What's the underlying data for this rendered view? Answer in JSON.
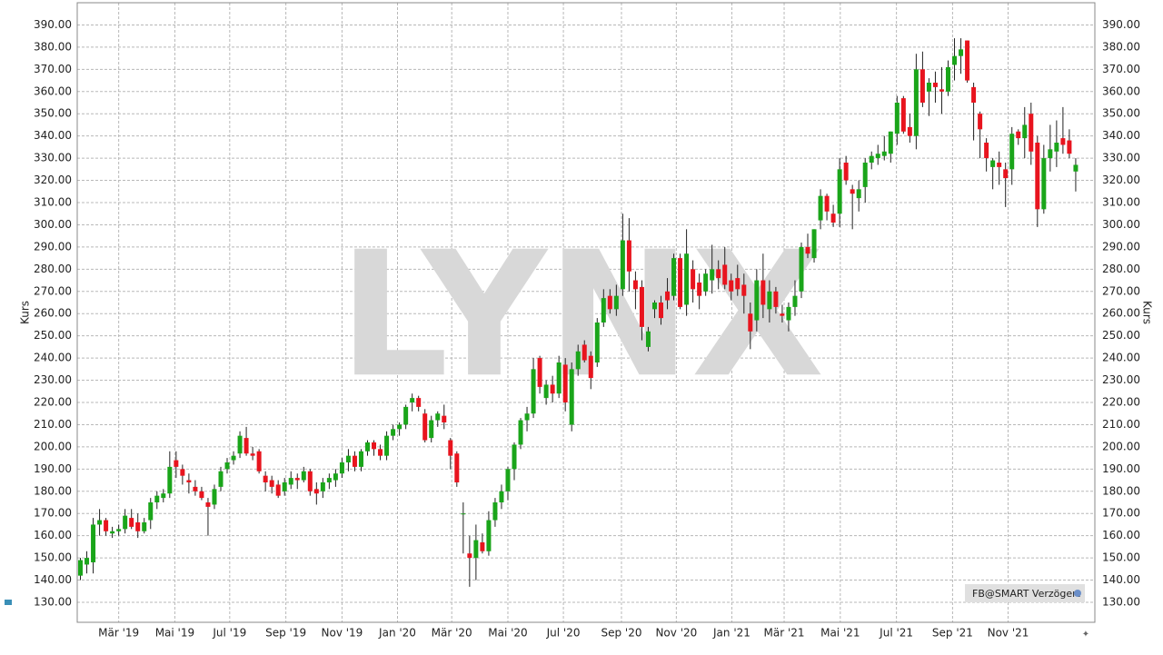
{
  "chart_data": {
    "type": "candlestick",
    "watermark": "LYNX",
    "ylabel": "Kurs",
    "source_label": "FB@SMART Verzögert",
    "up_color": "#1aa51a",
    "down_color": "#e8141e",
    "open": [
      142,
      147,
      148,
      165,
      167,
      161,
      162,
      163,
      168,
      166,
      162,
      167,
      175,
      177,
      179,
      194,
      190,
      185,
      182,
      180,
      175,
      174,
      182,
      190,
      194,
      197,
      204,
      197,
      198,
      187,
      185,
      183,
      180,
      183,
      186,
      185,
      189,
      181,
      180,
      184,
      185,
      188,
      193,
      196,
      191,
      198,
      202,
      199,
      196,
      205,
      208,
      210,
      220,
      222,
      215,
      204,
      212,
      214,
      203,
      197,
      170,
      152,
      150,
      157,
      153,
      167,
      175,
      180,
      190,
      201,
      212,
      215,
      240,
      222,
      228,
      224,
      237,
      210,
      235,
      246,
      241,
      238,
      256,
      268,
      262,
      271,
      293,
      275,
      272,
      245,
      262,
      265,
      270,
      268,
      285,
      264,
      280,
      274,
      270,
      275,
      280,
      282,
      275,
      276,
      273,
      260,
      257,
      275,
      262,
      270,
      260,
      257,
      263,
      270,
      290,
      285,
      302,
      313,
      305,
      305,
      328,
      316,
      312,
      317,
      328,
      330,
      331,
      332,
      341,
      357,
      344,
      340,
      370,
      360,
      364,
      361,
      360,
      372,
      376,
      383,
      362,
      350,
      337,
      326,
      328,
      325,
      325,
      342,
      339,
      350,
      337,
      307,
      330,
      333,
      339,
      338,
      324
    ],
    "high": [
      150,
      153,
      168,
      172,
      168,
      164,
      165,
      172,
      172,
      170,
      168,
      177,
      180,
      181,
      198,
      198,
      192,
      188,
      185,
      182,
      177,
      183,
      191,
      195,
      198,
      207,
      209,
      200,
      199,
      189,
      187,
      185,
      186,
      189,
      188,
      191,
      190,
      184,
      186,
      188,
      190,
      195,
      199,
      198,
      199,
      203,
      203,
      201,
      207,
      210,
      211,
      219,
      224,
      223,
      217,
      214,
      216,
      219,
      204,
      198,
      175,
      160,
      165,
      161,
      171,
      177,
      183,
      191,
      202,
      213,
      218,
      240,
      241,
      230,
      232,
      241,
      240,
      238,
      246,
      248,
      243,
      258,
      271,
      271,
      273,
      305,
      303,
      279,
      275,
      254,
      266,
      268,
      276,
      287,
      287,
      298,
      284,
      278,
      280,
      291,
      284,
      290,
      278,
      282,
      278,
      265,
      280,
      287,
      275,
      272,
      264,
      265,
      275,
      292,
      296,
      298,
      316,
      314,
      309,
      330,
      331,
      318,
      320,
      330,
      333,
      336,
      340,
      342,
      358,
      358,
      350,
      377,
      378,
      366,
      369,
      371,
      374,
      384,
      384,
      383,
      364,
      351,
      339,
      330,
      333,
      328,
      344,
      343,
      353,
      355,
      340,
      336,
      345,
      347,
      353,
      343,
      330
    ],
    "low": [
      140,
      143,
      143,
      160,
      160,
      159,
      160,
      161,
      163,
      159,
      161,
      163,
      172,
      175,
      177,
      186,
      183,
      179,
      178,
      176,
      160,
      172,
      180,
      188,
      192,
      195,
      196,
      194,
      188,
      180,
      179,
      177,
      178,
      181,
      181,
      184,
      178,
      174,
      177,
      181,
      182,
      186,
      189,
      189,
      189,
      196,
      196,
      194,
      194,
      203,
      205,
      208,
      216,
      216,
      202,
      202,
      209,
      208,
      190,
      182,
      152,
      137,
      140,
      152,
      151,
      164,
      172,
      176,
      185,
      199,
      207,
      213,
      224,
      219,
      220,
      222,
      216,
      207,
      232,
      238,
      226,
      236,
      254,
      260,
      259,
      268,
      270,
      262,
      248,
      243,
      258,
      255,
      262,
      266,
      262,
      259,
      265,
      262,
      268,
      269,
      271,
      271,
      266,
      268,
      260,
      244,
      252,
      258,
      256,
      260,
      256,
      252,
      259,
      267,
      285,
      283,
      298,
      302,
      299,
      299,
      318,
      298,
      306,
      310,
      325,
      327,
      329,
      328,
      336,
      341,
      337,
      334,
      353,
      349,
      355,
      350,
      358,
      365,
      368,
      364,
      338,
      330,
      324,
      316,
      318,
      308,
      318,
      336,
      330,
      327,
      299,
      305,
      324,
      326,
      332,
      330,
      315
    ],
    "close": [
      149,
      150,
      165,
      167,
      162,
      162,
      163,
      169,
      164,
      162,
      166,
      175,
      178,
      179,
      191,
      191,
      187,
      184,
      180,
      177,
      173,
      181,
      189,
      193,
      196,
      205,
      197,
      196,
      189,
      184,
      182,
      178,
      184,
      186,
      185,
      189,
      180,
      179,
      184,
      186,
      188,
      193,
      196,
      191,
      198,
      202,
      199,
      196,
      205,
      208,
      210,
      218,
      222,
      218,
      203,
      212,
      215,
      211,
      196,
      184,
      170,
      150,
      158,
      153,
      167,
      175,
      180,
      190,
      201,
      212,
      215,
      235,
      227,
      228,
      224,
      238,
      220,
      235,
      243,
      239,
      231,
      256,
      267,
      262,
      268,
      293,
      279,
      271,
      254,
      252,
      265,
      258,
      266,
      285,
      263,
      287,
      271,
      268,
      278,
      280,
      276,
      273,
      270,
      271,
      268,
      252,
      275,
      264,
      270,
      263,
      259,
      263,
      268,
      290,
      287,
      298,
      313,
      306,
      301,
      325,
      320,
      314,
      316,
      328,
      331,
      332,
      333,
      342,
      355,
      342,
      340,
      370,
      355,
      364,
      362,
      360,
      371,
      376,
      379,
      365,
      355,
      343,
      330,
      329,
      326,
      321,
      341,
      339,
      345,
      333,
      307,
      330,
      334,
      337,
      336,
      332,
      327
    ],
    "xlim": [
      -0.5,
      159
    ],
    "xticks": [
      {
        "value": 6.0,
        "label": "Mär '19"
      },
      {
        "value": 14.8,
        "label": "Mai '19"
      },
      {
        "value": 23.4,
        "label": "Jul '19"
      },
      {
        "value": 32.2,
        "label": "Sep '19"
      },
      {
        "value": 41.0,
        "label": "Nov '19"
      },
      {
        "value": 49.7,
        "label": "Jan '20"
      },
      {
        "value": 58.2,
        "label": "Mär '20"
      },
      {
        "value": 67.0,
        "label": "Mai '20"
      },
      {
        "value": 75.7,
        "label": "Jul '20"
      },
      {
        "value": 84.8,
        "label": "Sep '20"
      },
      {
        "value": 93.4,
        "label": "Nov '20"
      },
      {
        "value": 102.1,
        "label": "Jan '21"
      },
      {
        "value": 110.3,
        "label": "Mär '21"
      },
      {
        "value": 119.1,
        "label": "Mai '21"
      },
      {
        "value": 127.9,
        "label": "Jul '21"
      },
      {
        "value": 136.7,
        "label": "Sep '21"
      },
      {
        "value": 145.4,
        "label": "Nov '21"
      }
    ],
    "ylim": [
      121,
      400
    ],
    "yticks": [
      {
        "value": 130,
        "label": "130.00"
      },
      {
        "value": 140,
        "label": "140.00"
      },
      {
        "value": 150,
        "label": "150.00"
      },
      {
        "value": 160,
        "label": "160.00"
      },
      {
        "value": 170,
        "label": "170.00"
      },
      {
        "value": 180,
        "label": "180.00"
      },
      {
        "value": 190,
        "label": "190.00"
      },
      {
        "value": 200,
        "label": "200.00"
      },
      {
        "value": 210,
        "label": "210.00"
      },
      {
        "value": 220,
        "label": "220.00"
      },
      {
        "value": 230,
        "label": "230.00"
      },
      {
        "value": 240,
        "label": "240.00"
      },
      {
        "value": 250,
        "label": "250.00"
      },
      {
        "value": 260,
        "label": "260.00"
      },
      {
        "value": 270,
        "label": "270.00"
      },
      {
        "value": 280,
        "label": "280.00"
      },
      {
        "value": 290,
        "label": "290.00"
      },
      {
        "value": 300,
        "label": "300.00"
      },
      {
        "value": 310,
        "label": "310.00"
      },
      {
        "value": 320,
        "label": "320.00"
      },
      {
        "value": 330,
        "label": "330.00"
      },
      {
        "value": 340,
        "label": "340.00"
      },
      {
        "value": 350,
        "label": "350.00"
      },
      {
        "value": 360,
        "label": "360.00"
      },
      {
        "value": 370,
        "label": "370.00"
      },
      {
        "value": 380,
        "label": "380.00"
      },
      {
        "value": 390,
        "label": "390.00"
      }
    ],
    "grid": true
  }
}
